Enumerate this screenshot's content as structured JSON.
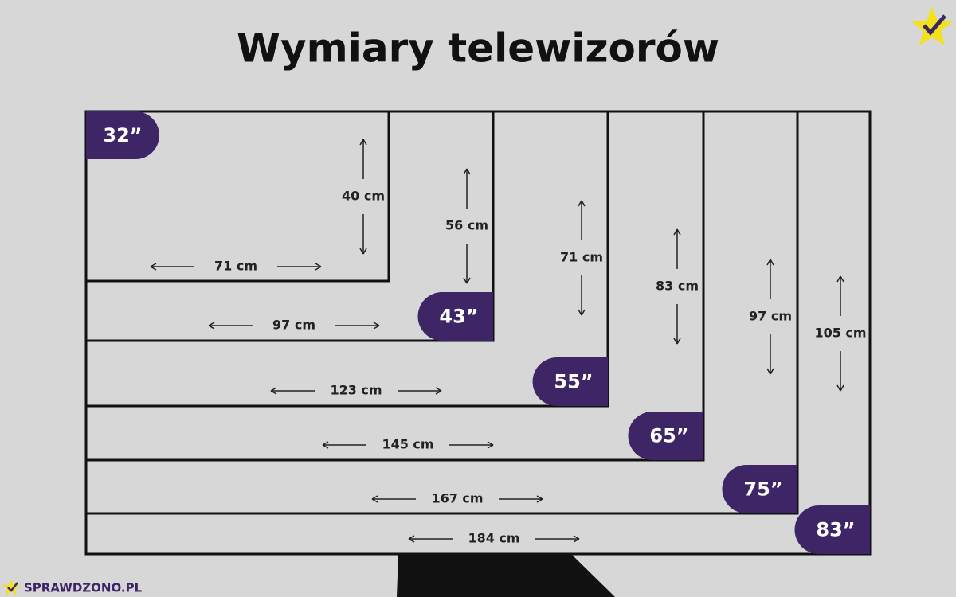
{
  "title": "Wymiary telewizorów",
  "sizes": [
    {
      "label": "32”",
      "width": "71 cm",
      "height": "40 cm"
    },
    {
      "label": "43”",
      "width": "97 cm",
      "height": "56 cm"
    },
    {
      "label": "55”",
      "width": "123 cm",
      "height": "71 cm"
    },
    {
      "label": "65”",
      "width": "145 cm",
      "height": "83 cm"
    },
    {
      "label": "75”",
      "width": "167 cm",
      "height": "97 cm"
    },
    {
      "label": "83”",
      "width": "184 cm",
      "height": "105 cm"
    }
  ],
  "brand": "SPRAWDZONO.PL"
}
